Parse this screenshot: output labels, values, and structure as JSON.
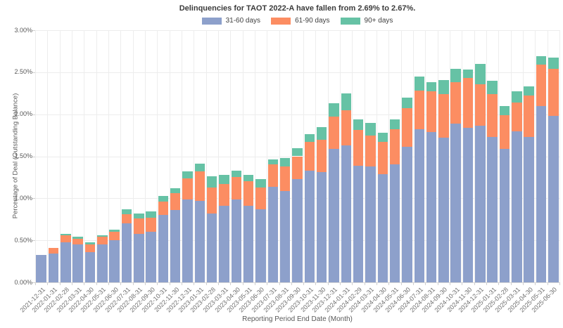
{
  "chart_data": {
    "type": "bar",
    "stacked": true,
    "title": "Delinquencies for TAOT 2022-A have fallen from 2.69% to 2.67%.",
    "xlabel": "Reporting Period End Date (Month)",
    "ylabel": "Percentage of Deal (Outstanding Balance)",
    "ylim": [
      0,
      3.0
    ],
    "ytick_values": [
      0,
      0.5,
      1.0,
      1.5,
      2.0,
      2.5,
      3.0
    ],
    "ytick_labels": [
      "0.00%",
      "0.50%",
      "1.00%",
      "1.50%",
      "2.00%",
      "2.50%",
      "3.00%"
    ],
    "grid": true,
    "legend_position": "top",
    "categories": [
      "2021-12-31",
      "2022-01-31",
      "2022-02-28",
      "2022-03-31",
      "2022-04-30",
      "2022-05-31",
      "2022-06-30",
      "2022-07-31",
      "2022-08-31",
      "2022-09-30",
      "2022-10-31",
      "2022-11-30",
      "2022-12-31",
      "2023-01-31",
      "2023-02-28",
      "2023-03-31",
      "2023-04-30",
      "2023-05-31",
      "2023-06-30",
      "2023-07-31",
      "2023-08-31",
      "2023-09-30",
      "2023-10-31",
      "2023-11-30",
      "2023-12-31",
      "2024-01-31",
      "2024-02-29",
      "2024-03-31",
      "2024-04-30",
      "2024-05-31",
      "2024-06-30",
      "2024-07-31",
      "2024-08-31",
      "2024-09-30",
      "2024-10-31",
      "2024-11-30",
      "2024-12-31",
      "2025-01-31",
      "2025-02-28",
      "2025-03-31",
      "2025-04-30",
      "2025-05-31",
      "2025-06-30"
    ],
    "series": [
      {
        "name": "31-60 days",
        "color": "#8da0cb",
        "values": [
          0.33,
          0.34,
          0.48,
          0.45,
          0.36,
          0.45,
          0.5,
          0.7,
          0.58,
          0.6,
          0.8,
          0.86,
          0.99,
          0.97,
          0.82,
          0.91,
          0.99,
          0.91,
          0.87,
          1.14,
          1.09,
          1.23,
          1.33,
          1.31,
          1.59,
          1.63,
          1.39,
          1.38,
          1.29,
          1.4,
          1.61,
          1.82,
          1.79,
          1.72,
          1.89,
          1.84,
          1.86,
          1.73,
          1.59,
          1.8,
          1.73,
          2.1,
          1.98
        ]
      },
      {
        "name": "61-90 days",
        "color": "#fc8d62",
        "values": [
          0.0,
          0.07,
          0.08,
          0.07,
          0.09,
          0.09,
          0.1,
          0.11,
          0.18,
          0.17,
          0.16,
          0.2,
          0.25,
          0.35,
          0.31,
          0.26,
          0.26,
          0.29,
          0.26,
          0.26,
          0.29,
          0.27,
          0.34,
          0.39,
          0.38,
          0.42,
          0.42,
          0.37,
          0.38,
          0.42,
          0.46,
          0.46,
          0.48,
          0.52,
          0.49,
          0.59,
          0.5,
          0.51,
          0.4,
          0.34,
          0.49,
          0.49,
          0.56
        ]
      },
      {
        "name": "90+ days",
        "color": "#66c2a5",
        "values": [
          0.0,
          0.0,
          0.02,
          0.02,
          0.03,
          0.02,
          0.03,
          0.06,
          0.06,
          0.07,
          0.07,
          0.06,
          0.08,
          0.09,
          0.13,
          0.11,
          0.08,
          0.08,
          0.1,
          0.06,
          0.1,
          0.1,
          0.09,
          0.15,
          0.16,
          0.2,
          0.13,
          0.15,
          0.11,
          0.12,
          0.13,
          0.17,
          0.11,
          0.17,
          0.16,
          0.1,
          0.24,
          0.16,
          0.11,
          0.13,
          0.11,
          0.1,
          0.13
        ]
      }
    ]
  }
}
